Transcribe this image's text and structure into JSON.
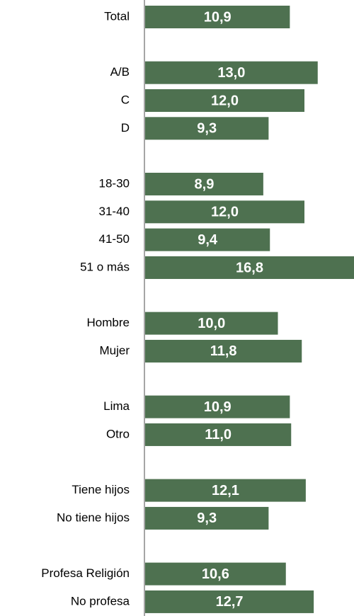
{
  "chart_data": {
    "type": "hbar",
    "color": "#4e7150",
    "categories": [
      "Total",
      null,
      "A/B",
      "C",
      "D",
      null,
      "18-30",
      "31-40",
      "41-50",
      "51 o más",
      null,
      "Hombre",
      "Mujer",
      null,
      "Lima",
      "Otro",
      null,
      "Tiene hijos",
      "No tiene hijos",
      null,
      "Profesa Religión",
      "No profesa"
    ],
    "values": [
      10.9,
      null,
      13.0,
      12.0,
      9.3,
      null,
      8.9,
      12.0,
      9.4,
      16.8,
      null,
      10.0,
      11.8,
      null,
      10.9,
      11.0,
      null,
      12.1,
      9.3,
      null,
      10.6,
      12.7
    ],
    "value_labels": [
      "10,9",
      null,
      "13,0",
      "12,0",
      "9,3",
      null,
      "8,9",
      "12,0",
      "9,4",
      "16,8",
      null,
      "10,0",
      "11,8",
      null,
      "10,9",
      "11,0",
      null,
      "12,1",
      "9,3",
      null,
      "10,6",
      "12,7"
    ],
    "xlim": [
      0,
      16
    ]
  }
}
